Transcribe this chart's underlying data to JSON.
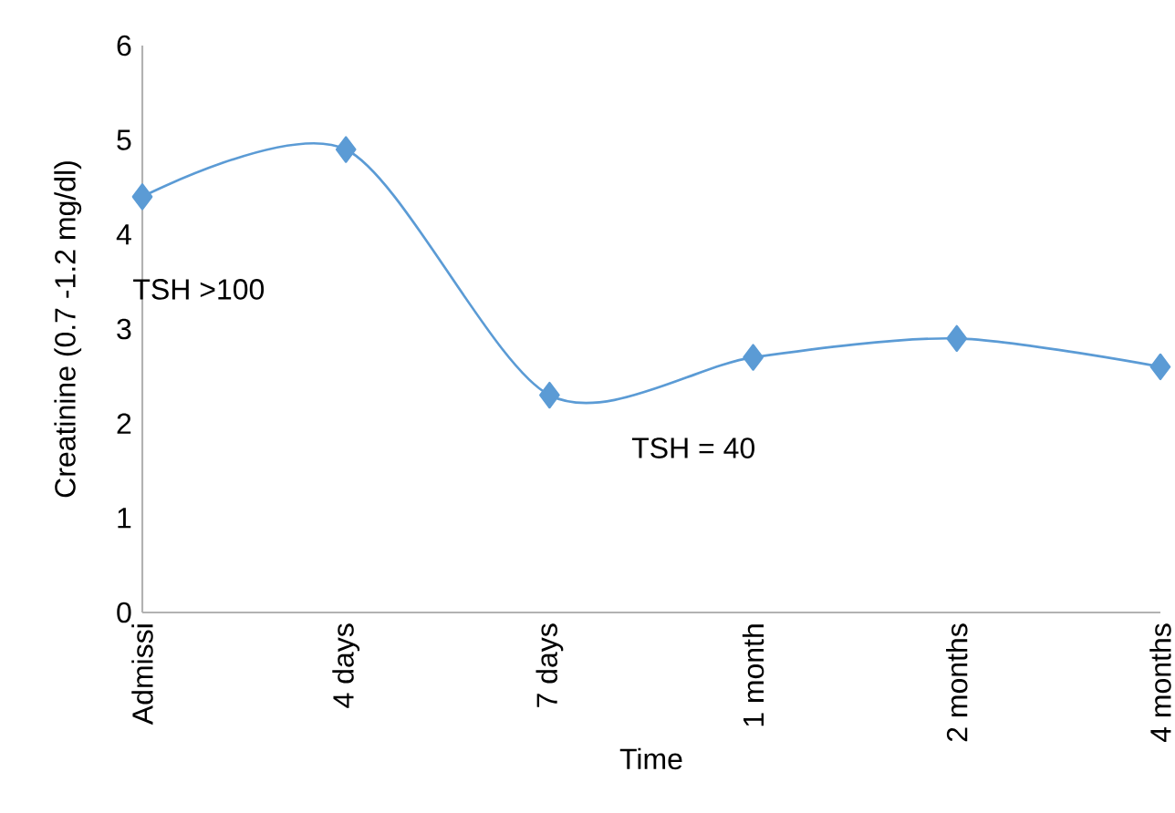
{
  "chart_data": {
    "type": "line",
    "xlabel": "Time",
    "ylabel": "Creatinine (0.7 -1.2 mg/dl)",
    "categories": [
      "Admissi",
      "4 days",
      "7 days",
      "1 month",
      "2 months",
      "4 months"
    ],
    "series": [
      {
        "color": "#5b9bd5",
        "values": [
          4.4,
          4.9,
          2.3,
          2.7,
          2.9,
          2.6
        ]
      }
    ],
    "ylim": [
      0,
      6
    ],
    "yticks": [
      0,
      1,
      2,
      3,
      4,
      5,
      6
    ],
    "marker": "diamond",
    "line_style": "solid",
    "grid": false,
    "annotations": [
      "TSH  >100",
      "TSH  = 40"
    ]
  }
}
